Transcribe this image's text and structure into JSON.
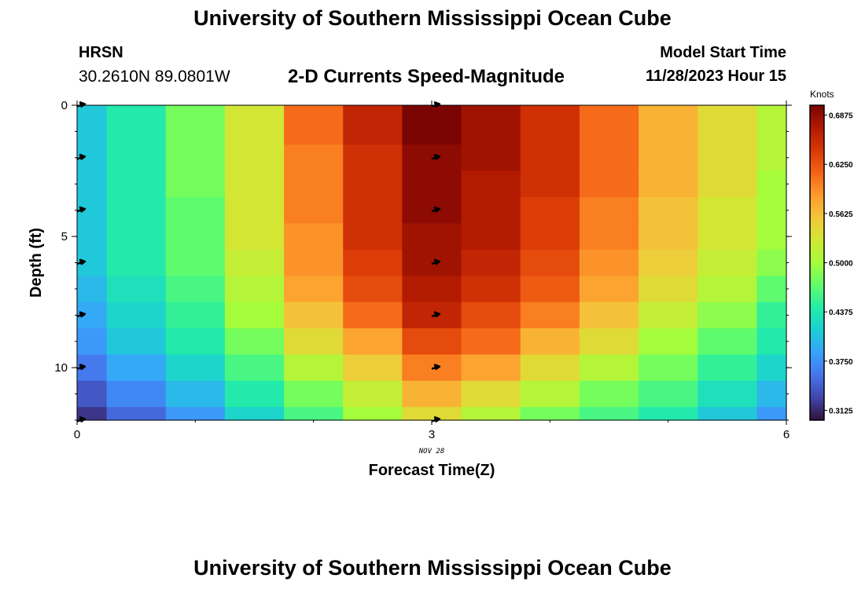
{
  "header": {
    "title": "University of Southern Mississippi Ocean Cube",
    "station": "HRSN",
    "coordinates": "30.2610N  89.0801W",
    "subtitle": "2-D Currents Speed-Magnitude",
    "start_label": "Model Start Time",
    "start_value": "11/28/2023 Hour 15"
  },
  "footer": {
    "title": "University of Southern Mississippi Ocean Cube"
  },
  "chart_data": {
    "type": "heatmap",
    "xlabel": "Forecast Time(Z)",
    "ylabel": "Depth (ft)",
    "x_ticks": [
      "0",
      "3",
      "6"
    ],
    "y_ticks": [
      "0",
      "5",
      "10"
    ],
    "x_sublabel": "NOV 28",
    "xlim": [
      0,
      6
    ],
    "ylim": [
      0,
      12
    ],
    "colorbar": {
      "title": "Knots",
      "ticks": [
        "0.6875",
        "0.6250",
        "0.5625",
        "0.5000",
        "0.4375",
        "0.3750",
        "0.3125"
      ],
      "range": [
        0.3,
        0.7
      ]
    },
    "depths": [
      0,
      1,
      2,
      3,
      4,
      5,
      6,
      7,
      8,
      9,
      10,
      11,
      12
    ],
    "times": [
      0,
      0.5,
      1,
      1.5,
      2,
      2.5,
      3,
      3.5,
      4,
      4.5,
      5,
      5.5,
      6
    ],
    "values": [
      [
        0.41,
        0.44,
        0.48,
        0.53,
        0.61,
        0.66,
        0.7,
        0.68,
        0.65,
        0.61,
        0.57,
        0.54,
        0.51
      ],
      [
        0.41,
        0.44,
        0.48,
        0.53,
        0.61,
        0.66,
        0.7,
        0.68,
        0.65,
        0.61,
        0.57,
        0.54,
        0.51
      ],
      [
        0.41,
        0.44,
        0.48,
        0.53,
        0.6,
        0.65,
        0.69,
        0.68,
        0.65,
        0.61,
        0.57,
        0.54,
        0.51
      ],
      [
        0.41,
        0.44,
        0.48,
        0.53,
        0.6,
        0.65,
        0.69,
        0.67,
        0.65,
        0.61,
        0.57,
        0.54,
        0.5
      ],
      [
        0.41,
        0.44,
        0.47,
        0.53,
        0.6,
        0.65,
        0.69,
        0.67,
        0.64,
        0.6,
        0.56,
        0.53,
        0.5
      ],
      [
        0.41,
        0.44,
        0.47,
        0.53,
        0.59,
        0.65,
        0.68,
        0.67,
        0.64,
        0.6,
        0.56,
        0.53,
        0.5
      ],
      [
        0.41,
        0.44,
        0.47,
        0.52,
        0.59,
        0.64,
        0.68,
        0.66,
        0.63,
        0.59,
        0.55,
        0.52,
        0.49
      ],
      [
        0.4,
        0.43,
        0.46,
        0.51,
        0.58,
        0.63,
        0.67,
        0.65,
        0.62,
        0.58,
        0.54,
        0.51,
        0.47
      ],
      [
        0.39,
        0.42,
        0.45,
        0.5,
        0.56,
        0.61,
        0.66,
        0.63,
        0.6,
        0.56,
        0.52,
        0.49,
        0.45
      ],
      [
        0.38,
        0.41,
        0.44,
        0.48,
        0.54,
        0.58,
        0.63,
        0.61,
        0.57,
        0.54,
        0.5,
        0.47,
        0.44
      ],
      [
        0.36,
        0.39,
        0.42,
        0.46,
        0.51,
        0.55,
        0.6,
        0.58,
        0.54,
        0.51,
        0.48,
        0.45,
        0.42
      ],
      [
        0.34,
        0.37,
        0.4,
        0.44,
        0.48,
        0.52,
        0.57,
        0.54,
        0.51,
        0.48,
        0.46,
        0.43,
        0.4
      ],
      [
        0.32,
        0.35,
        0.38,
        0.42,
        0.46,
        0.5,
        0.54,
        0.51,
        0.48,
        0.46,
        0.44,
        0.41,
        0.38
      ]
    ],
    "arrows": {
      "times": [
        0,
        3
      ],
      "depths": [
        0,
        2,
        4,
        6,
        8,
        10,
        12
      ]
    },
    "colormap": [
      "#30123b",
      "#4145ab",
      "#4675ed",
      "#39a2fc",
      "#1bcfd4",
      "#24eca6",
      "#61fc6c",
      "#a4fc3b",
      "#d1e834",
      "#f3c63a",
      "#fe9b2d",
      "#f36315",
      "#d93806",
      "#b11901",
      "#7a0402"
    ]
  }
}
